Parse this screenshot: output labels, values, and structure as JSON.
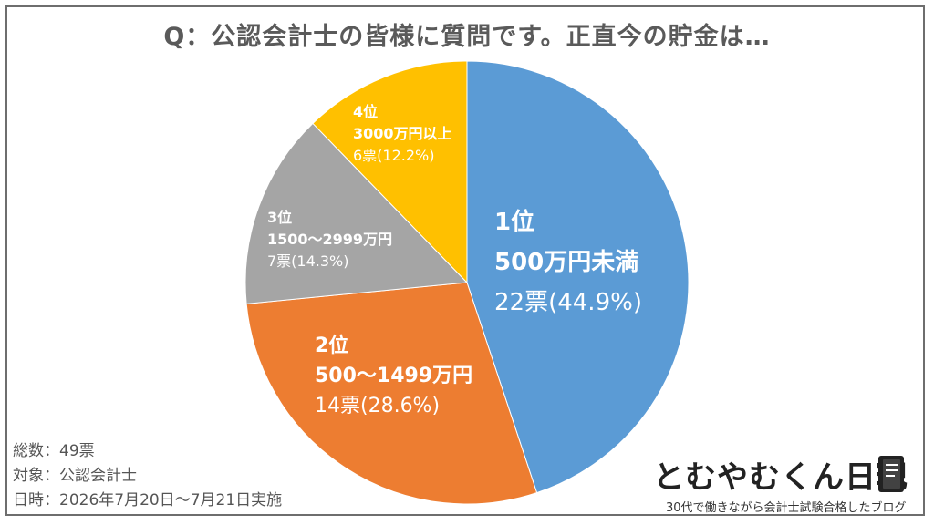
{
  "title": "Q：公認会計士の皆様に質問です。正直今の貯金は…",
  "chart_data": {
    "type": "pie",
    "slices": [
      {
        "rank": "1位",
        "category": "500万円未満",
        "votes": "22票",
        "percent_label": "(44.9%)",
        "value": 22,
        "percent": 44.9,
        "color": "#5b9bd5"
      },
      {
        "rank": "2位",
        "category": "500～1499万円",
        "votes": "14票",
        "percent_label": "(28.6%)",
        "value": 14,
        "percent": 28.6,
        "color": "#ed7d31"
      },
      {
        "rank": "3位",
        "category": "1500～2999万円",
        "votes": "7票",
        "percent_label": "(14.3%)",
        "value": 7,
        "percent": 14.3,
        "color": "#a5a5a5"
      },
      {
        "rank": "4位",
        "category": "3000万円以上",
        "votes": "6票",
        "percent_label": "(12.2%)",
        "value": 6,
        "percent": 12.2,
        "color": "#ffc000"
      }
    ]
  },
  "footer": {
    "total": "総数：49票",
    "target": "対象：公認会計士",
    "date": "日時：2026年7月20日～7月21日実施"
  },
  "brand": {
    "name": "とむやむくん日記",
    "tagline": "30代で働きながら会計士試験合格したブログ",
    "icon": "notebook-icon",
    "color": "#222222"
  }
}
